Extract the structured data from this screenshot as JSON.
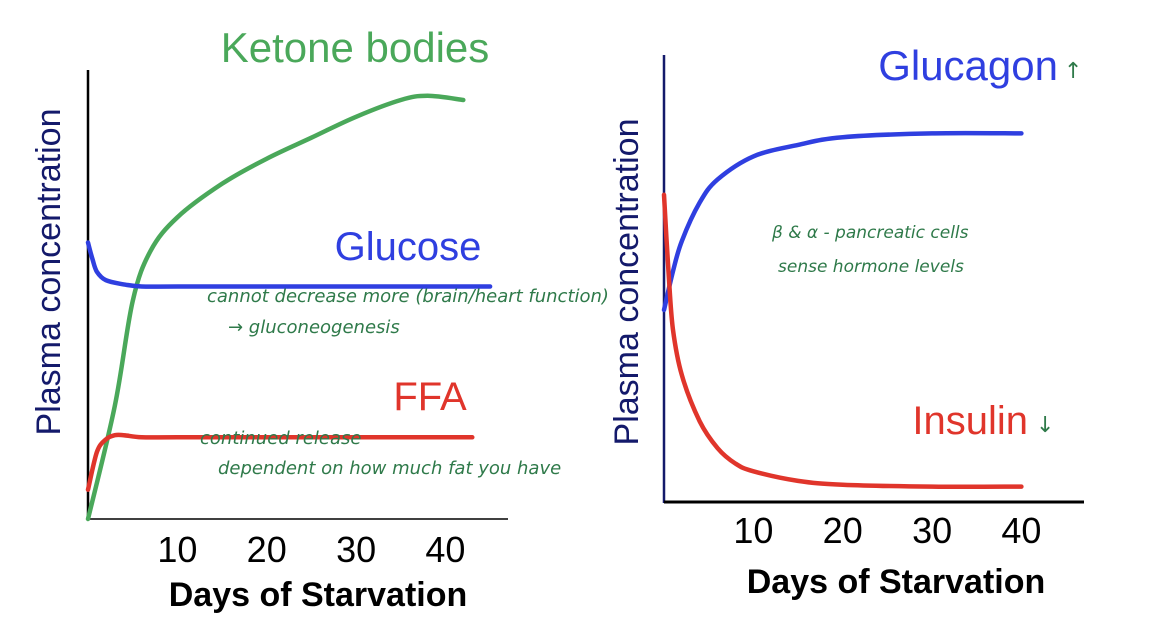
{
  "chart_data": [
    {
      "type": "line",
      "xlabel": "Days of Starvation",
      "ylabel": "Plasma concentration",
      "xticks": [
        10,
        20,
        30,
        40
      ],
      "xlim": [
        0,
        47
      ],
      "ylim": [
        0,
        1
      ],
      "grid": false,
      "series": [
        {
          "name": "Ketone bodies",
          "color": "#4aa85a",
          "x": [
            0,
            3,
            5,
            7,
            10,
            15,
            20,
            25,
            30,
            35,
            38,
            42
          ],
          "y": [
            0.0,
            0.27,
            0.52,
            0.64,
            0.72,
            0.8,
            0.86,
            0.91,
            0.96,
            1.0,
            1.01,
            1.0
          ]
        },
        {
          "name": "Glucose",
          "color": "#2f3fe0",
          "x": [
            0,
            0.5,
            1,
            2,
            4,
            6,
            10,
            20,
            30,
            40,
            45
          ],
          "y": [
            0.66,
            0.62,
            0.59,
            0.57,
            0.56,
            0.555,
            0.555,
            0.555,
            0.555,
            0.555,
            0.555
          ]
        },
        {
          "name": "FFA",
          "color": "#e0352b",
          "x": [
            0,
            1,
            2,
            3,
            4,
            6,
            10,
            20,
            30,
            40,
            43
          ],
          "y": [
            0.07,
            0.16,
            0.19,
            0.2,
            0.2,
            0.195,
            0.195,
            0.195,
            0.195,
            0.195,
            0.195
          ]
        }
      ],
      "annotations": [
        "cannot decrease more (brain/heart function)",
        "→ gluconeogenesis",
        "continued release",
        "dependent on how much fat you have"
      ]
    },
    {
      "type": "line",
      "xlabel": "Days of Starvation",
      "ylabel": "Plasma concentration",
      "xticks": [
        10,
        20,
        30,
        40
      ],
      "xlim": [
        0,
        47
      ],
      "ylim": [
        0,
        1
      ],
      "grid": false,
      "series": [
        {
          "name": "Glucagon",
          "color": "#2f3fe0",
          "x": [
            0,
            1,
            2,
            4,
            6,
            10,
            15,
            20,
            30,
            40
          ],
          "y": [
            0.5,
            0.6,
            0.68,
            0.78,
            0.84,
            0.9,
            0.93,
            0.95,
            0.96,
            0.96
          ]
        },
        {
          "name": "Insulin",
          "color": "#e0352b",
          "x": [
            0,
            0.5,
            1,
            2,
            4,
            6,
            8,
            10,
            15,
            20,
            30,
            40
          ],
          "y": [
            0.8,
            0.6,
            0.45,
            0.33,
            0.21,
            0.14,
            0.1,
            0.08,
            0.055,
            0.045,
            0.04,
            0.04
          ]
        }
      ],
      "annotations": [
        "β & α - pancreatic cells",
        "sense hormone levels"
      ],
      "glucagon_arrow": "↑",
      "insulin_arrow": "↓"
    }
  ]
}
